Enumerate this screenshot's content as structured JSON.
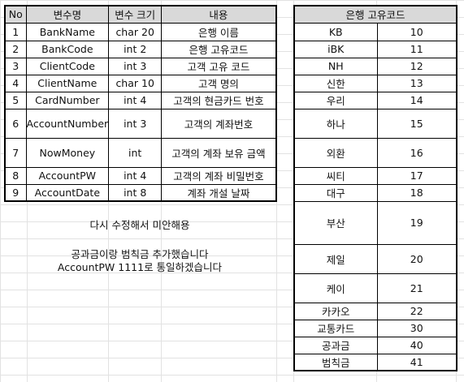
{
  "variables_table": {
    "headers": [
      "No",
      "변수명",
      "변수 크기",
      "내용"
    ],
    "rows": [
      {
        "no": "1",
        "name": "BankName",
        "size": "char 20",
        "desc": "은행 이름"
      },
      {
        "no": "2",
        "name": "BankCode",
        "size": "int 2",
        "desc": "은행 고유코드"
      },
      {
        "no": "3",
        "name": "ClientCode",
        "size": "int 3",
        "desc": "고객 고유 코드"
      },
      {
        "no": "4",
        "name": "ClientName",
        "size": "char 10",
        "desc": "고객 명의"
      },
      {
        "no": "5",
        "name": "CardNumber",
        "size": "int 4",
        "desc": "고객의 현금카드 번호"
      },
      {
        "no": "6",
        "name": "AccountNumber",
        "size": "int 3",
        "desc": "고객의 계좌번호"
      },
      {
        "no": "7",
        "name": "NowMoney",
        "size": "int",
        "desc": "고객의 계좌 보유 금액"
      },
      {
        "no": "8",
        "name": "AccountPW",
        "size": "int 4",
        "desc": "고객의 계좌 비밀번호"
      },
      {
        "no": "9",
        "name": "AccountDate",
        "size": "int 8",
        "desc": "계좌 개설 날짜"
      }
    ]
  },
  "bank_codes_table": {
    "header": "은행 고유코드",
    "rows": [
      {
        "bank": "KB",
        "code": "10"
      },
      {
        "bank": "iBK",
        "code": "11"
      },
      {
        "bank": "NH",
        "code": "12"
      },
      {
        "bank": "신한",
        "code": "13"
      },
      {
        "bank": "우리",
        "code": "14"
      },
      {
        "bank": "하나",
        "code": "15"
      },
      {
        "bank": "외환",
        "code": "16"
      },
      {
        "bank": "씨티",
        "code": "17"
      },
      {
        "bank": "대구",
        "code": "18"
      },
      {
        "bank": "부산",
        "code": "19"
      },
      {
        "bank": "제일",
        "code": "20"
      },
      {
        "bank": "케이",
        "code": "21"
      },
      {
        "bank": "카카오",
        "code": "22"
      },
      {
        "bank": "교통카드",
        "code": "30"
      },
      {
        "bank": "공과금",
        "code": "40"
      },
      {
        "bank": "범칙금",
        "code": "41"
      }
    ]
  },
  "notes": {
    "apology": "다시 수정해서 미안해용",
    "line1": "공과금이랑 범칙금 추가했습니다",
    "line2": "AccountPW 1111로 통일하겠습니다"
  }
}
